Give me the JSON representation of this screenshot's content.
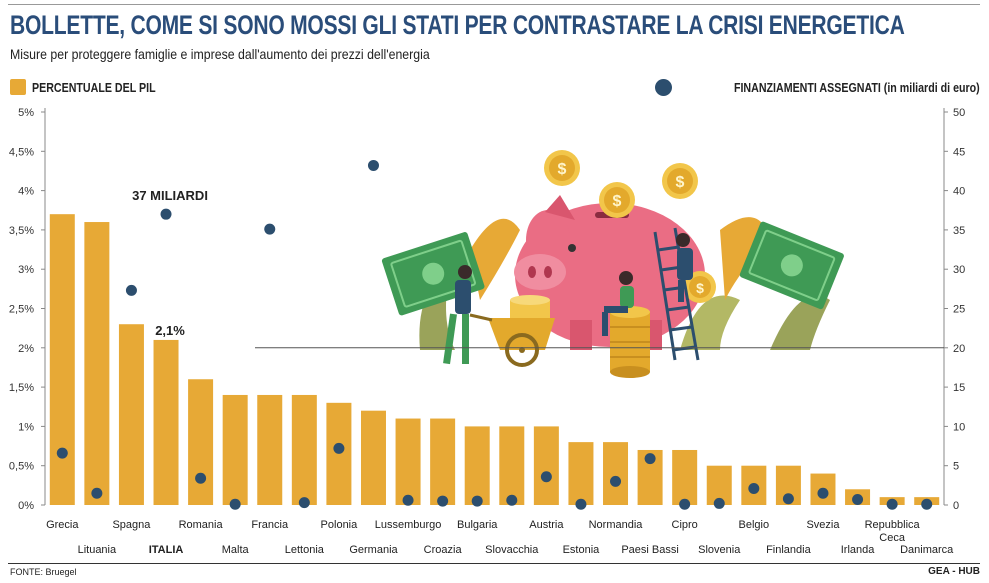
{
  "header": {
    "title": "BOLLETTE, COME SI SONO MOSSI GLI STATI PER CONTRASTARE LA CRISI ENERGETICA",
    "subtitle": "Misure per proteggere famiglie e imprese dall'aumento dei prezzi dell'energia"
  },
  "legend": {
    "bars_label": "PERCENTUALE DEL PIL",
    "dots_label": "FINANZIAMENTI ASSEGNATI (in miliardi di euro)"
  },
  "footer": {
    "source": "FONTE: Bruegel",
    "brand": "GEA - HUB"
  },
  "colors": {
    "bar": "#e7a936",
    "dot": "#2c4e6e",
    "title": "#2a4d7a"
  },
  "chart_data": {
    "type": "bar",
    "categories": [
      "Grecia",
      "Lituania",
      "Spagna",
      "ITALIA",
      "Romania",
      "Malta",
      "Francia",
      "Lettonia",
      "Polonia",
      "Germania",
      "Lussemburgo",
      "Croazia",
      "Bulgaria",
      "Slovacchia",
      "Austria",
      "Estonia",
      "Normandia",
      "Paesi Bassi",
      "Cipro",
      "Slovenia",
      "Belgio",
      "Finlandia",
      "Svezia",
      "Irlanda",
      "Repubblica Ceca",
      "Danimarca"
    ],
    "series": [
      {
        "name": "PERCENTUALE DEL PIL",
        "axis": "left",
        "values": [
          3.7,
          3.6,
          2.3,
          2.1,
          1.6,
          1.4,
          1.4,
          1.4,
          1.3,
          1.2,
          1.1,
          1.1,
          1.0,
          1.0,
          1.0,
          0.8,
          0.8,
          0.7,
          0.7,
          0.5,
          0.5,
          0.5,
          0.4,
          0.2,
          0.1,
          0.1
        ]
      },
      {
        "name": "FINANZIAMENTI ASSEGNATI (in miliardi di euro)",
        "axis": "right",
        "values": [
          6.6,
          1.5,
          27.3,
          37,
          3.4,
          0.1,
          35.1,
          0.3,
          7.2,
          43.2,
          0.6,
          0.5,
          0.5,
          0.6,
          3.6,
          0.1,
          3.0,
          5.9,
          0.1,
          0.2,
          2.1,
          0.8,
          1.5,
          0.7,
          0.1,
          0.1
        ]
      }
    ],
    "y_left": {
      "ylim": [
        0,
        5
      ],
      "ticks": [
        "0%",
        "0,5%",
        "1%",
        "1,5%",
        "2%",
        "2,5%",
        "3%",
        "3,5%",
        "4%",
        "4,5%",
        "5%"
      ]
    },
    "y_right": {
      "ylim": [
        0,
        50
      ],
      "ticks": [
        "0",
        "5",
        "10",
        "15",
        "20",
        "25",
        "30",
        "35",
        "40",
        "45",
        "50"
      ]
    },
    "annotations": [
      {
        "text": "37 MILIARDI",
        "category": "ITALIA"
      },
      {
        "text": "2,1%",
        "category": "ITALIA"
      }
    ],
    "reference_line": {
      "axis": "right",
      "value": 20
    },
    "highlight_category": "ITALIA",
    "grid": false,
    "legend_position": "top"
  }
}
